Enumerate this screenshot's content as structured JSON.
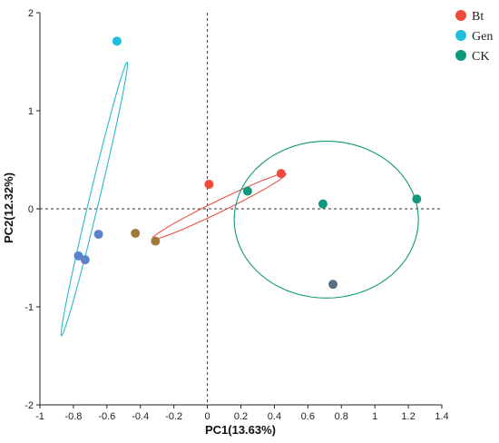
{
  "chart_data": {
    "type": "scatter",
    "xlabel": "PC1(13.63%)",
    "ylabel": "PC2(12.32%)",
    "xlim": [
      -1,
      1.4
    ],
    "ylim": [
      -2,
      2
    ],
    "xticks": [
      -1,
      -0.8,
      -0.6,
      -0.4,
      -0.2,
      0,
      0.2,
      0.4,
      0.6,
      0.8,
      1,
      1.2,
      1.4
    ],
    "yticks": [
      -2,
      -1,
      0,
      1,
      2
    ],
    "xtick_labels": [
      "-1",
      "-0.8",
      "-0.6",
      "-0.4",
      "-0.2",
      "0",
      "0.2",
      "0.4",
      "0.6",
      "0.8",
      "1",
      "1.2",
      "1.4"
    ],
    "ytick_labels": [
      "-2",
      "-1",
      "0",
      "1",
      "2"
    ],
    "reference_lines": {
      "x": 0,
      "y": 0,
      "style": "dashed"
    },
    "legend_position": "top-right",
    "series": [
      {
        "name": "Bt",
        "color": "#f04a3a",
        "points": [
          {
            "x": 0.01,
            "y": 0.25,
            "color": "#f04a3a"
          },
          {
            "x": 0.44,
            "y": 0.36,
            "color": "#f04a3a"
          },
          {
            "x": -0.43,
            "y": -0.25,
            "color": "#a4773a"
          },
          {
            "x": -0.31,
            "y": -0.33,
            "color": "#a4773a"
          }
        ],
        "ellipse": {
          "cx": 0.07,
          "cy": 0.025,
          "rx": 0.52,
          "ry": 0.05,
          "angle_deg": 40,
          "stroke": "#e8514a"
        }
      },
      {
        "name": "Gen",
        "color": "#1ebfda",
        "points": [
          {
            "x": -0.54,
            "y": 1.71,
            "color": "#1ebfda"
          },
          {
            "x": -0.65,
            "y": -0.26,
            "color": "#5b82cc"
          },
          {
            "x": -0.77,
            "y": -0.48,
            "color": "#5b82cc"
          },
          {
            "x": -0.73,
            "y": -0.52,
            "color": "#5b82cc"
          }
        ],
        "ellipse": {
          "cx": -0.675,
          "cy": 0.1,
          "rx": 1.41,
          "ry": 0.03,
          "angle_deg": 82,
          "stroke": "#2bb8cf"
        }
      },
      {
        "name": "CK",
        "color": "#11977b",
        "points": [
          {
            "x": 0.24,
            "y": 0.18,
            "color": "#11977b"
          },
          {
            "x": 0.69,
            "y": 0.05,
            "color": "#11977b"
          },
          {
            "x": 1.25,
            "y": 0.1,
            "color": "#11977b"
          },
          {
            "x": 0.75,
            "y": -0.77,
            "color": "#5a6e82"
          }
        ],
        "ellipse": {
          "cx": 0.71,
          "cy": -0.11,
          "rx": 0.55,
          "ry": 0.8,
          "angle_deg": 0,
          "stroke": "#11977b"
        }
      }
    ]
  },
  "legend": {
    "items": [
      {
        "label": "Bt",
        "color": "#f04a3a"
      },
      {
        "label": "Gen",
        "color": "#1ebfda"
      },
      {
        "label": "CK",
        "color": "#11977b"
      }
    ]
  }
}
